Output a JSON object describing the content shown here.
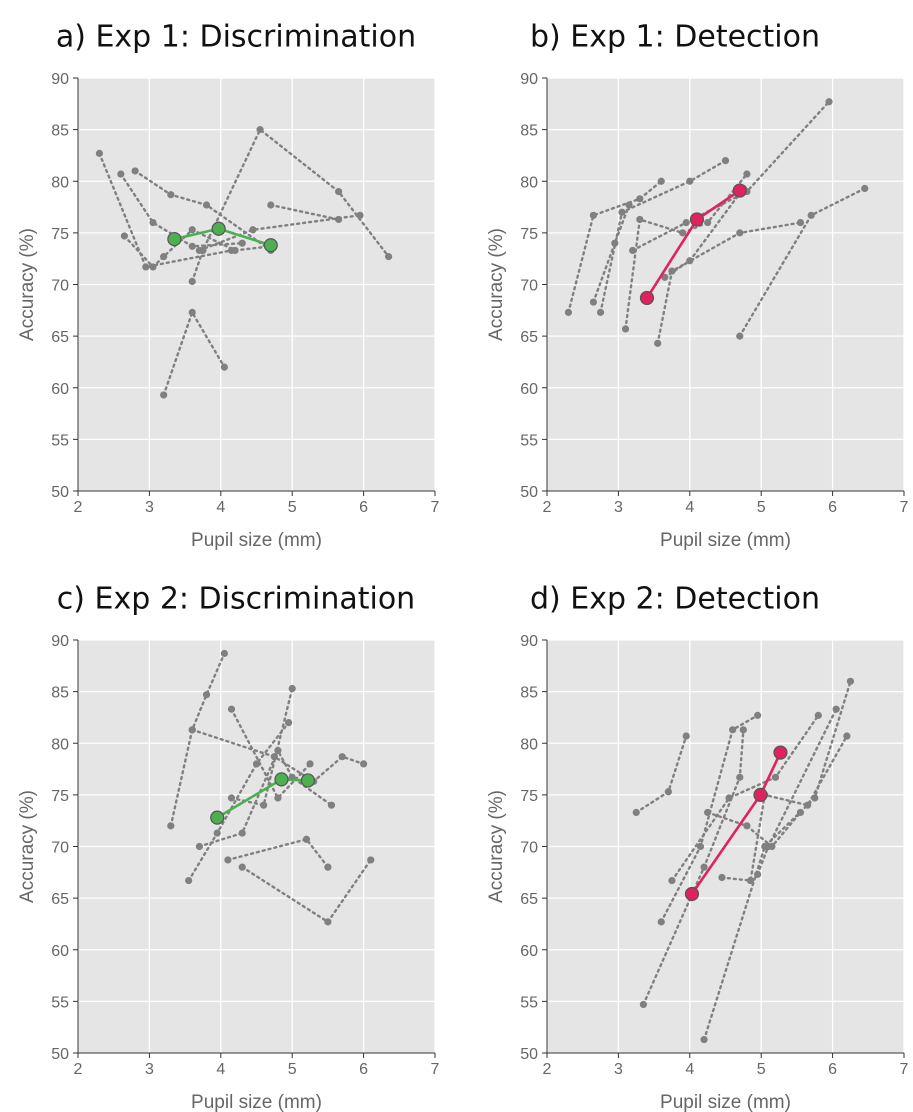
{
  "figure": {
    "colors": {
      "background": "#e5e5e5",
      "grid": "#ffffff",
      "participant": "#808080",
      "mean_discrimination": "#4caf50",
      "mean_detection": "#e0225e"
    }
  },
  "chart_data": [
    {
      "type": "line",
      "title": "a) Exp 1: Discrimination",
      "xlabel": "Pupil size (mm)",
      "ylabel": "Accuracy (%)",
      "xlim": [
        2,
        7
      ],
      "ylim": [
        50,
        90
      ],
      "xticks": [
        "2",
        "3",
        "4",
        "5",
        "6",
        "7"
      ],
      "yticks": [
        "50",
        "55",
        "60",
        "65",
        "70",
        "75",
        "80",
        "85",
        "90"
      ],
      "grid": true,
      "participants": [
        {
          "x": [
            2.3,
            2.95,
            4.15
          ],
          "y": [
            82.7,
            71.7,
            73.3
          ]
        },
        {
          "x": [
            2.6,
            3.05,
            3.6,
            4.3
          ],
          "y": [
            80.7,
            76.0,
            73.7,
            74.0
          ]
        },
        {
          "x": [
            2.8,
            3.3,
            3.8,
            4.7
          ],
          "y": [
            81.0,
            78.7,
            77.7,
            73.3
          ]
        },
        {
          "x": [
            3.2,
            3.6,
            4.05
          ],
          "y": [
            59.3,
            67.3,
            62.0
          ]
        },
        {
          "x": [
            2.65,
            3.05,
            3.2,
            3.6,
            4.2,
            4.7
          ],
          "y": [
            74.7,
            71.7,
            72.7,
            75.3,
            73.3,
            73.7
          ]
        },
        {
          "x": [
            3.6,
            3.75,
            4.55,
            5.65,
            6.35
          ],
          "y": [
            70.3,
            73.3,
            85.0,
            79.0,
            72.7
          ]
        },
        {
          "x": [
            3.7,
            4.45,
            5.95
          ],
          "y": [
            73.3,
            75.3,
            76.7
          ]
        },
        {
          "x": [
            4.7,
            5.65
          ],
          "y": [
            77.7,
            76.3
          ]
        }
      ],
      "mean": {
        "x": [
          3.35,
          3.97,
          4.7
        ],
        "y": [
          74.4,
          75.4,
          73.8
        ]
      }
    },
    {
      "type": "line",
      "title": "b) Exp 1: Detection",
      "xlabel": "Pupil size (mm)",
      "ylabel": "Accuracy (%)",
      "xlim": [
        2,
        7
      ],
      "ylim": [
        50,
        90
      ],
      "xticks": [
        "2",
        "3",
        "4",
        "5",
        "6",
        "7"
      ],
      "yticks": [
        "50",
        "55",
        "60",
        "65",
        "70",
        "75",
        "80",
        "85",
        "90"
      ],
      "grid": true,
      "participants": [
        {
          "x": [
            2.3,
            2.65,
            3.3,
            3.6
          ],
          "y": [
            67.3,
            76.7,
            78.3,
            80.0
          ]
        },
        {
          "x": [
            2.65,
            2.95,
            3.15
          ],
          "y": [
            68.3,
            74.0,
            77.7
          ]
        },
        {
          "x": [
            2.75,
            3.05,
            4.0,
            4.5
          ],
          "y": [
            67.3,
            77.0,
            80.0,
            82.0
          ]
        },
        {
          "x": [
            3.1,
            3.3,
            3.9,
            4.25,
            4.8
          ],
          "y": [
            65.7,
            76.3,
            75.0,
            76.0,
            80.7
          ]
        },
        {
          "x": [
            3.2,
            3.95,
            4.8,
            5.95
          ],
          "y": [
            73.3,
            76.0,
            79.0,
            87.7
          ]
        },
        {
          "x": [
            3.55,
            3.75,
            4.7,
            5.55
          ],
          "y": [
            64.3,
            71.3,
            75.0,
            76.0
          ]
        },
        {
          "x": [
            3.65,
            4.0,
            4.75
          ],
          "y": [
            70.7,
            72.3,
            79.3
          ]
        },
        {
          "x": [
            4.7,
            5.7,
            6.45
          ],
          "y": [
            65.0,
            76.7,
            79.3
          ]
        }
      ],
      "mean": {
        "x": [
          3.4,
          4.1,
          4.7
        ],
        "y": [
          68.7,
          76.3,
          79.1
        ]
      }
    },
    {
      "type": "line",
      "title": "c) Exp 2: Discrimination",
      "xlabel": "Pupil size (mm)",
      "ylabel": "Accuracy (%)",
      "xlim": [
        2,
        7
      ],
      "ylim": [
        50,
        90
      ],
      "xticks": [
        "2",
        "3",
        "4",
        "5",
        "6",
        "7"
      ],
      "yticks": [
        "50",
        "55",
        "60",
        "65",
        "70",
        "75",
        "80",
        "85",
        "90"
      ],
      "grid": true,
      "participants": [
        {
          "x": [
            3.3,
            3.6,
            3.8,
            4.05
          ],
          "y": [
            72.0,
            81.3,
            84.7,
            88.7
          ]
        },
        {
          "x": [
            3.55,
            3.95,
            4.5,
            4.95
          ],
          "y": [
            66.7,
            71.3,
            78.0,
            82.0
          ]
        },
        {
          "x": [
            3.7,
            4.3,
            4.8,
            5.0,
            5.55
          ],
          "y": [
            70.0,
            71.3,
            79.3,
            76.7,
            74.0
          ]
        },
        {
          "x": [
            3.6,
            4.75,
            5.3,
            5.7,
            6.0
          ],
          "y": [
            81.3,
            78.7,
            76.3,
            78.7,
            78.0
          ]
        },
        {
          "x": [
            4.15,
            4.6,
            5.0
          ],
          "y": [
            74.7,
            74.0,
            85.3
          ]
        },
        {
          "x": [
            4.15,
            4.8,
            5.25
          ],
          "y": [
            83.3,
            74.7,
            78.0
          ]
        },
        {
          "x": [
            4.1,
            5.2,
            5.5
          ],
          "y": [
            68.7,
            70.7,
            68.0
          ]
        },
        {
          "x": [
            4.3,
            5.5,
            6.1
          ],
          "y": [
            68.0,
            62.7,
            68.7
          ]
        }
      ],
      "mean": {
        "x": [
          3.95,
          4.85,
          5.22
        ],
        "y": [
          72.8,
          76.5,
          76.4
        ]
      }
    },
    {
      "type": "line",
      "title": "d) Exp 2: Detection",
      "xlabel": "Pupil size (mm)",
      "ylabel": "Accuracy (%)",
      "xlim": [
        2,
        7
      ],
      "ylim": [
        50,
        90
      ],
      "xticks": [
        "2",
        "3",
        "4",
        "5",
        "6",
        "7"
      ],
      "yticks": [
        "50",
        "55",
        "60",
        "65",
        "70",
        "75",
        "80",
        "85",
        "90"
      ],
      "grid": true,
      "participants": [
        {
          "x": [
            3.25,
            3.7,
            3.95
          ],
          "y": [
            73.3,
            75.3,
            80.7
          ]
        },
        {
          "x": [
            3.35,
            4.2,
            4.7,
            4.75
          ],
          "y": [
            54.7,
            68.0,
            76.7,
            81.3
          ]
        },
        {
          "x": [
            3.6,
            4.15,
            4.6,
            4.95
          ],
          "y": [
            62.7,
            70.0,
            81.3,
            82.7
          ]
        },
        {
          "x": [
            3.75,
            4.55,
            5.2,
            5.8
          ],
          "y": [
            66.7,
            74.7,
            76.7,
            82.7
          ]
        },
        {
          "x": [
            4.2,
            5.05,
            5.75,
            6.25
          ],
          "y": [
            51.3,
            70.0,
            74.7,
            86.0
          ]
        },
        {
          "x": [
            4.25,
            4.8,
            5.15,
            5.55
          ],
          "y": [
            73.3,
            72.0,
            70.0,
            73.3
          ]
        },
        {
          "x": [
            4.45,
            4.85,
            5.05,
            5.65,
            6.2
          ],
          "y": [
            67.0,
            66.7,
            75.0,
            74.0,
            80.7
          ]
        },
        {
          "x": [
            4.95,
            5.1,
            6.05
          ],
          "y": [
            67.3,
            70.0,
            83.3
          ]
        }
      ],
      "mean": {
        "x": [
          4.03,
          4.99,
          5.27
        ],
        "y": [
          65.4,
          75.0,
          79.1
        ]
      }
    }
  ]
}
